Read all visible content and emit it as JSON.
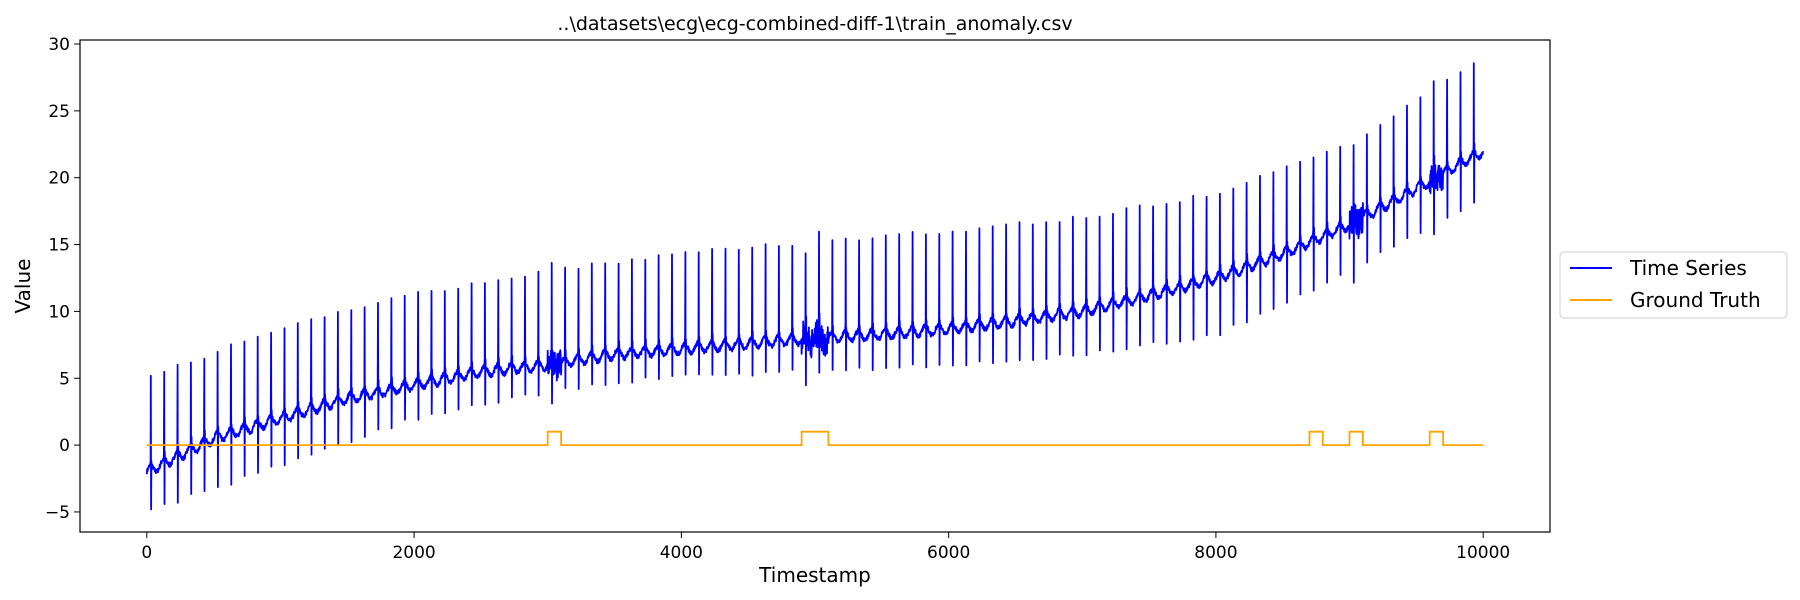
{
  "chart_data": {
    "type": "line",
    "title": "..\\datasets\\ecg\\ecg-combined-diff-1\\train_anomaly.csv",
    "xlabel": "Timestamp",
    "ylabel": "Value",
    "xlim": [
      -500,
      10500
    ],
    "ylim": [
      -6.5,
      30.3
    ],
    "xticks": [
      0,
      2000,
      4000,
      6000,
      8000,
      10000
    ],
    "xtick_labels": [
      "0",
      "2000",
      "4000",
      "6000",
      "8000",
      "10000"
    ],
    "yticks": [
      -5,
      0,
      5,
      10,
      15,
      20,
      25,
      30
    ],
    "ytick_labels": [
      "−5",
      "0",
      "5",
      "10",
      "15",
      "20",
      "25",
      "30"
    ],
    "grid": false,
    "legend_position": "right, outside plot",
    "series": [
      {
        "name": "Time Series",
        "color": "#0000ff",
        "description_points": {
          "baseline": [
            [
              0,
              -2.0
            ],
            [
              100,
              -1.5
            ],
            [
              500,
              0.5
            ],
            [
              1000,
              2.0
            ],
            [
              1500,
              3.5
            ],
            [
              2000,
              4.5
            ],
            [
              2500,
              5.5
            ],
            [
              3000,
              6.0
            ],
            [
              3500,
              6.8
            ],
            [
              4000,
              7.2
            ],
            [
              4500,
              7.6
            ],
            [
              5000,
              8.0
            ],
            [
              5500,
              8.3
            ],
            [
              6000,
              8.7
            ],
            [
              6500,
              9.3
            ],
            [
              7000,
              10.0
            ],
            [
              7500,
              11.2
            ],
            [
              8000,
              12.5
            ],
            [
              8500,
              14.3
            ],
            [
              9000,
              16.5
            ],
            [
              9500,
              19.2
            ],
            [
              10000,
              22.0
            ]
          ],
          "beat_interval": 100,
          "spike_peak": [
            [
              0,
              5.0
            ],
            [
              1000,
              8.8
            ],
            [
              2000,
              11.3
            ],
            [
              3000,
              13.0
            ],
            [
              4000,
              14.3
            ],
            [
              5000,
              15.2
            ],
            [
              6000,
              16.0
            ],
            [
              7000,
              17.0
            ],
            [
              8000,
              18.8
            ],
            [
              9000,
              22.5
            ],
            [
              9900,
              28.5
            ]
          ],
          "spike_trough": [
            [
              0,
              -5.0
            ],
            [
              1000,
              -1.5
            ],
            [
              2000,
              2.0
            ],
            [
              3000,
              4.0
            ],
            [
              4000,
              5.2
            ],
            [
              5000,
              5.5
            ],
            [
              6000,
              6.0
            ],
            [
              7000,
              6.8
            ],
            [
              8000,
              8.2
            ],
            [
              9000,
              13.0
            ],
            [
              9900,
              18.0
            ]
          ],
          "noisy_ranges": [
            [
              3000,
              3100
            ],
            [
              4900,
              5100
            ],
            [
              9000,
              9100
            ],
            [
              9600,
              9700
            ]
          ]
        }
      },
      {
        "name": "Ground Truth",
        "color": "#ffa500",
        "x": [
          0,
          3000,
          3000,
          3100,
          3100,
          4900,
          4900,
          5100,
          5100,
          8700,
          8700,
          8800,
          8800,
          9000,
          9000,
          9100,
          9100,
          9600,
          9600,
          9700,
          9700,
          10000
        ],
        "y": [
          0,
          0,
          1,
          1,
          0,
          0,
          1,
          1,
          0,
          0,
          1,
          1,
          0,
          0,
          1,
          1,
          0,
          0,
          1,
          1,
          0,
          0
        ]
      }
    ]
  }
}
